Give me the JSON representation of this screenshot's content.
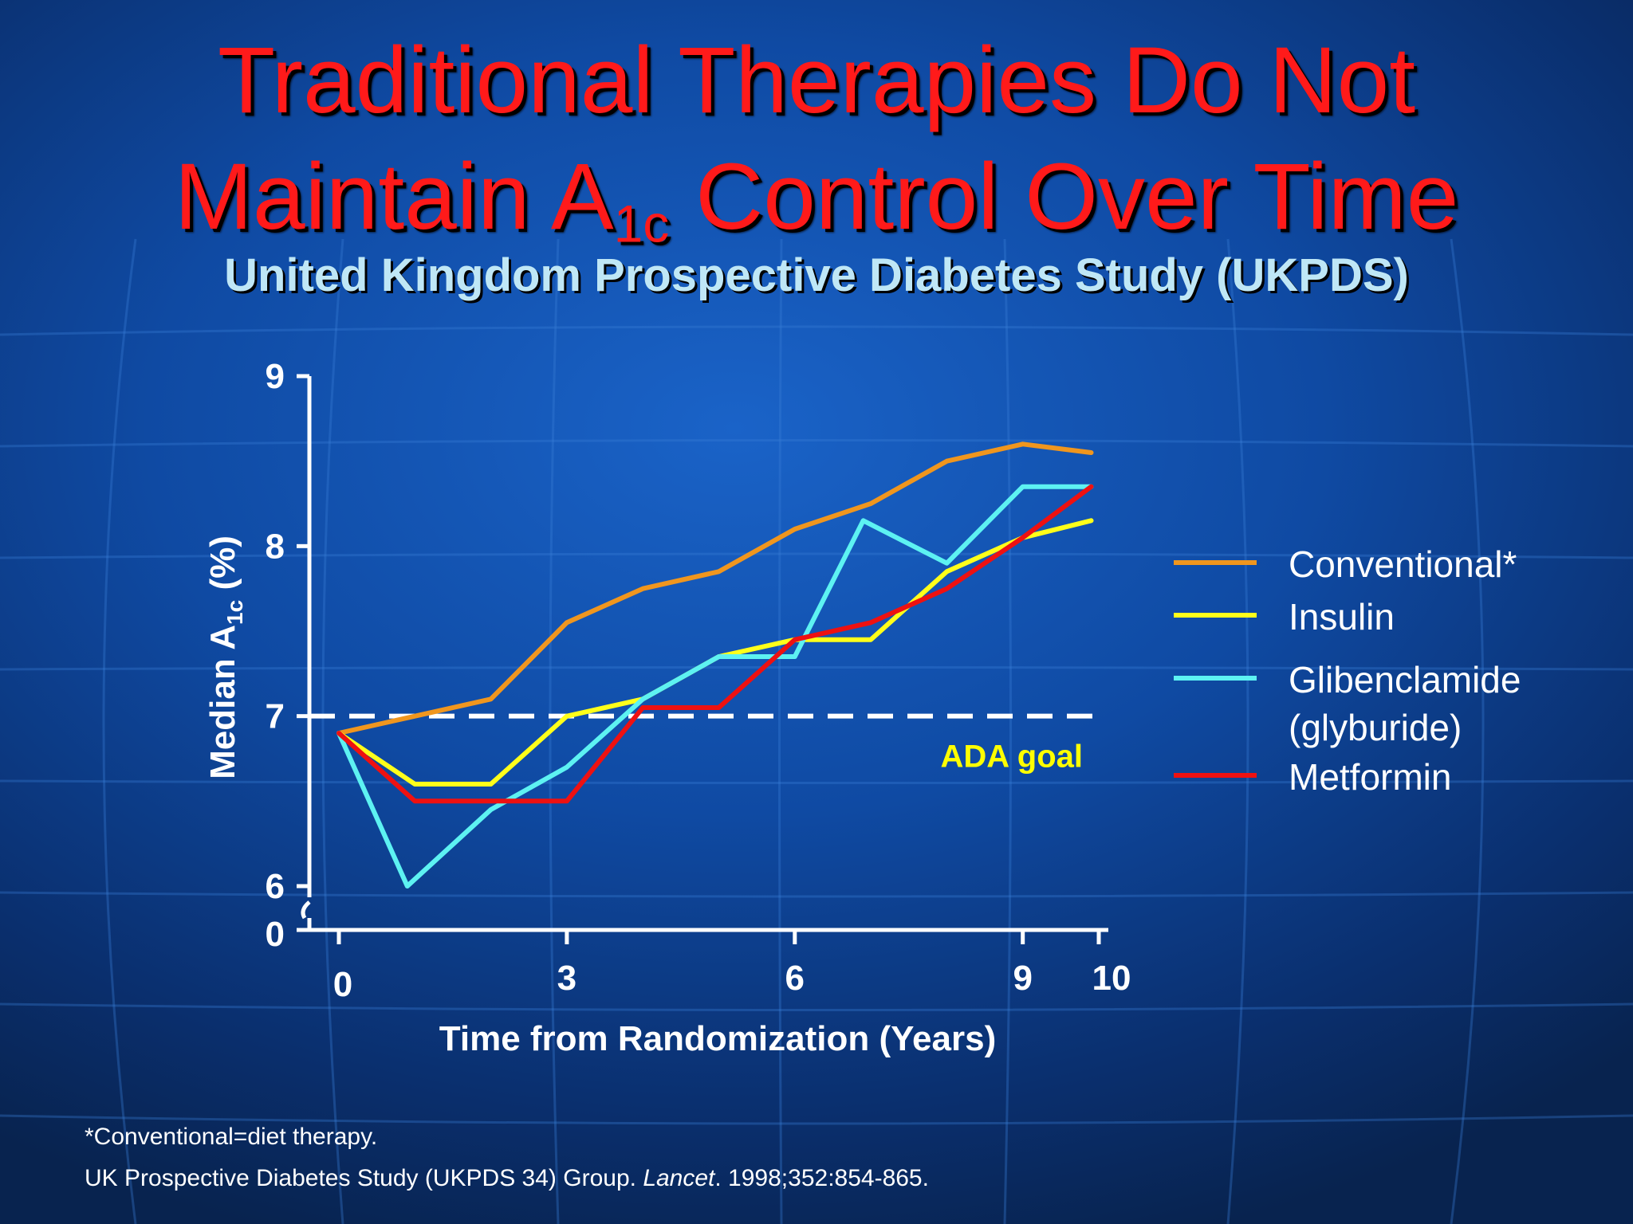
{
  "slide": {
    "title_line1": "Traditional Therapies Do Not",
    "title_line2_pre": "Maintain A",
    "title_line2_sub": "1c",
    "title_line2_post": " Control Over Time",
    "subtitle": "United Kingdom Prospective Diabetes Study (UKPDS)",
    "footnote": "*Conventional=diet therapy.",
    "citation_pre": "UK Prospective Diabetes Study (UKPDS 34) Group. ",
    "citation_journal": "Lancet",
    "citation_post": ". 1998;352:854-865."
  },
  "chart_data": {
    "type": "line",
    "xlabel": "Time from Randomization (Years)",
    "ylabel_pre": "Median A",
    "ylabel_sub": "1c",
    "ylabel_post": " (%)",
    "x_ticks": [
      0,
      3,
      6,
      9,
      10
    ],
    "y_ticks": [
      9,
      8,
      7,
      6
    ],
    "y_zero_label": "0",
    "xlim": [
      0,
      10
    ],
    "ylim": [
      6,
      9
    ],
    "axis_break": true,
    "reference_line": {
      "y": 7,
      "label": "ADA goal",
      "color": "#ffff00",
      "style": "dashed"
    },
    "legend_position": "right",
    "series": [
      {
        "name": "Conventional*",
        "color": "#f0961e",
        "points": [
          [
            0,
            6.9
          ],
          [
            1,
            7.0
          ],
          [
            2,
            7.1
          ],
          [
            3,
            7.55
          ],
          [
            4,
            7.75
          ],
          [
            5,
            7.85
          ],
          [
            6,
            8.1
          ],
          [
            7,
            8.25
          ],
          [
            8,
            8.5
          ],
          [
            9,
            8.6
          ],
          [
            9.9,
            8.55
          ]
        ]
      },
      {
        "name": "Insulin",
        "color": "#ffff1a",
        "points": [
          [
            0,
            6.9
          ],
          [
            1,
            6.6
          ],
          [
            2,
            6.6
          ],
          [
            3,
            7.0
          ],
          [
            4,
            7.1
          ],
          [
            5,
            7.35
          ],
          [
            6,
            7.45
          ],
          [
            7,
            7.45
          ],
          [
            8,
            7.85
          ],
          [
            9,
            8.05
          ],
          [
            9.9,
            8.15
          ]
        ]
      },
      {
        "name": "Glibenclamide",
        "name_line2": "(glyburide)",
        "color": "#5df2f2",
        "points": [
          [
            0,
            6.9
          ],
          [
            0.9,
            6.0
          ],
          [
            2,
            6.45
          ],
          [
            3,
            6.7
          ],
          [
            4,
            7.1
          ],
          [
            5,
            7.35
          ],
          [
            6,
            7.35
          ],
          [
            6.9,
            8.15
          ],
          [
            8,
            7.9
          ],
          [
            9,
            8.35
          ],
          [
            9.9,
            8.35
          ]
        ]
      },
      {
        "name": "Metformin",
        "color": "#ee1111",
        "points": [
          [
            0,
            6.9
          ],
          [
            1,
            6.5
          ],
          [
            2,
            6.5
          ],
          [
            3,
            6.5
          ],
          [
            4,
            7.05
          ],
          [
            5,
            7.05
          ],
          [
            6,
            7.45
          ],
          [
            7,
            7.55
          ],
          [
            8,
            7.75
          ],
          [
            9,
            8.05
          ],
          [
            9.9,
            8.35
          ]
        ]
      }
    ]
  }
}
